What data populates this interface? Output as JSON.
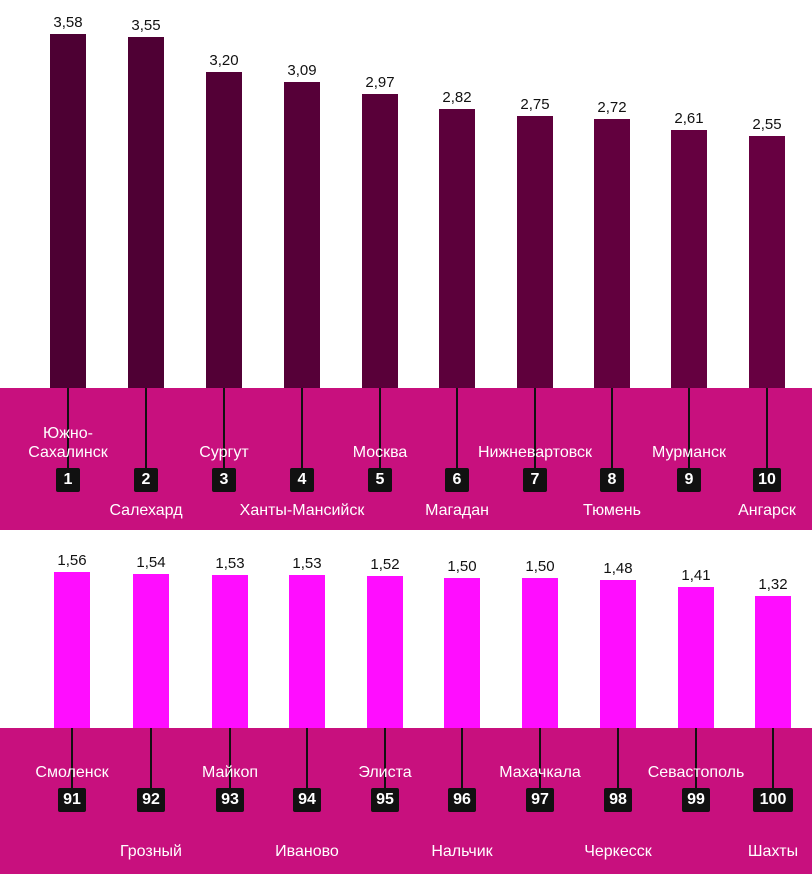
{
  "colors": {
    "top_bars": "#5c0038",
    "top_band": "#c8107e",
    "bottom_bars": "#ff0dff",
    "bottom_band": "#c8107e",
    "rank_box": "#111111",
    "label_text": "#ffffff",
    "value_text": "#111111"
  },
  "chart_data": [
    {
      "type": "bar",
      "ylim": [
        0,
        3.75
      ],
      "categories": [
        "1",
        "2",
        "3",
        "4",
        "5",
        "6",
        "7",
        "8",
        "9",
        "10"
      ],
      "cities": [
        "Южно-\nСахалинск",
        "Салехард",
        "Сургут",
        "Ханты-Мансийск",
        "Москва",
        "Магадан",
        "Нижневартовск",
        "Тюмень",
        "Мурманск",
        "Ангарск"
      ],
      "values": [
        3.58,
        3.55,
        3.2,
        3.09,
        2.97,
        2.82,
        2.75,
        2.72,
        2.61,
        2.55
      ],
      "value_labels": [
        "3,58",
        "3,55",
        "3,20",
        "3,09",
        "2,97",
        "2,82",
        "2,75",
        "2,72",
        "2,61",
        "2,55"
      ],
      "bar_colors": [
        "#4d0033",
        "#4f0034",
        "#530036",
        "#560038",
        "#590039",
        "#5c003b",
        "#5f003c",
        "#62003e",
        "#650040",
        "#670041"
      ]
    },
    {
      "type": "bar",
      "ylim": [
        0,
        1.56
      ],
      "categories": [
        "91",
        "92",
        "93",
        "94",
        "95",
        "96",
        "97",
        "98",
        "99",
        "100"
      ],
      "cities": [
        "Смоленск",
        "Грозный",
        "Майкоп",
        "Иваново",
        "Элиста",
        "Нальчик",
        "Махачкала",
        "Черкесск",
        "Севастополь",
        "Шахты"
      ],
      "values": [
        1.56,
        1.54,
        1.53,
        1.53,
        1.52,
        1.5,
        1.5,
        1.48,
        1.41,
        1.32
      ],
      "value_labels": [
        "1,56",
        "1,54",
        "1,53",
        "1,53",
        "1,52",
        "1,50",
        "1,50",
        "1,48",
        "1,41",
        "1,32"
      ]
    }
  ]
}
